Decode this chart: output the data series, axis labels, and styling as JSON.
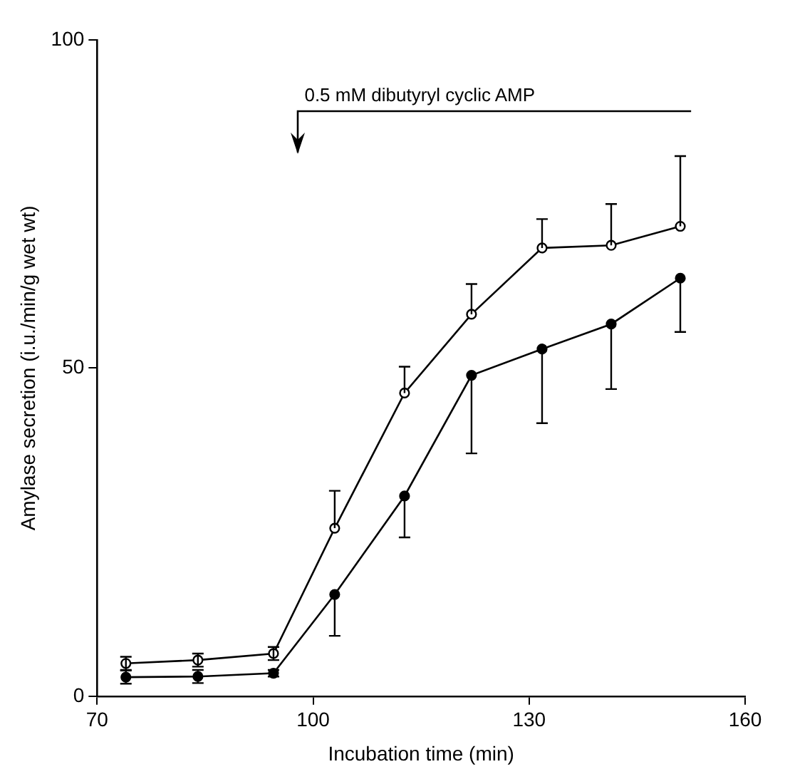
{
  "chart_data": {
    "type": "line",
    "xlabel": "Incubation time (min)",
    "ylabel": "Amylase secretion (i.u./min/g wet wt)",
    "x": [
      74,
      84,
      94.5,
      103,
      112.7,
      122,
      131.8,
      141.4,
      151
    ],
    "series": [
      {
        "color": "#000000",
        "values": [
          5,
          5.5,
          6.5,
          25.6,
          46.2,
          58.2,
          68.3,
          68.7,
          71.6
        ],
        "errors": [
          1,
          1,
          1,
          [
            25.6,
            31.3
          ],
          [
            46.2,
            50.2
          ],
          [
            58.2,
            62.8
          ],
          [
            68.3,
            72.7
          ],
          [
            68.7,
            75
          ],
          [
            71.6,
            82.3
          ]
        ]
      },
      {
        "color": "#000000",
        "values": [
          2.9,
          3,
          3.5,
          15.5,
          30.5,
          48.9,
          52.9,
          56.7,
          63.7
        ],
        "errors": [
          1,
          1,
          0.5,
          [
            9.2,
            15.5
          ],
          [
            24.2,
            30.5
          ],
          [
            37,
            48.9
          ],
          [
            41.6,
            52.9
          ],
          [
            46.8,
            56.7
          ],
          [
            55.5,
            63.7
          ]
        ]
      }
    ],
    "xlim": [
      70,
      160
    ],
    "xticks": [
      70,
      100,
      130,
      160
    ],
    "ylim": [
      0,
      100
    ],
    "yticks": [
      0,
      50,
      100
    ],
    "grid": false,
    "legend": false,
    "marker": "circle",
    "line_style": "solid",
    "annotations": [
      "0.5 mM dibutyryl cyclic AMP"
    ]
  }
}
